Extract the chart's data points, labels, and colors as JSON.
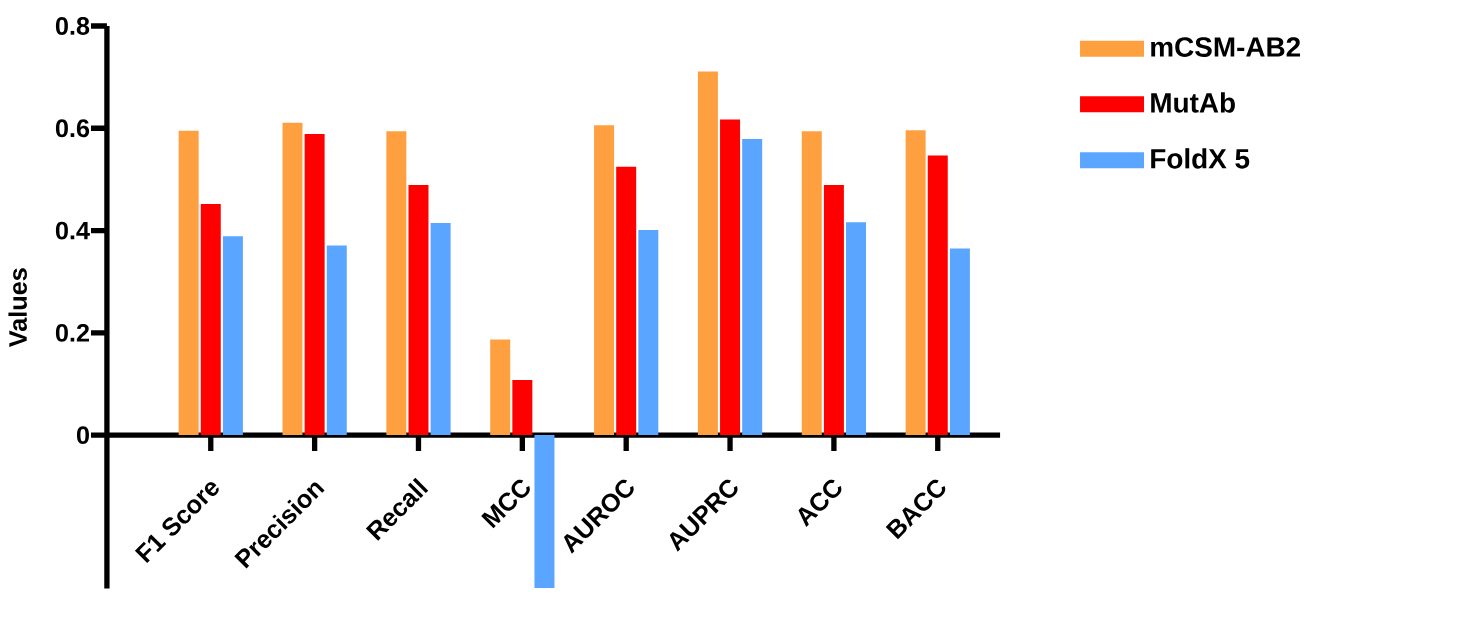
{
  "chart_data": {
    "type": "bar",
    "ylabel": "Values",
    "categories": [
      "F1 Score",
      "Precision",
      "Recall",
      "MCC",
      "AUROC",
      "AUPRC",
      "ACC",
      "BACC"
    ],
    "series": [
      {
        "name": "mCSM-AB2",
        "color": "#ffa040",
        "values": [
          0.595,
          0.611,
          0.594,
          0.187,
          0.606,
          0.711,
          0.594,
          0.596
        ]
      },
      {
        "name": "MutAb",
        "color": "#ff0000",
        "values": [
          0.452,
          0.589,
          0.489,
          0.108,
          0.525,
          0.617,
          0.489,
          0.547
        ]
      },
      {
        "name": "FoldX 5",
        "color": "#5aa5ff",
        "values": [
          0.389,
          0.371,
          0.415,
          -0.299,
          0.401,
          0.579,
          0.416,
          0.365
        ]
      }
    ],
    "ylim": [
      -0.3,
      0.8
    ],
    "yticks": [
      0,
      0.2,
      0.4,
      0.6,
      0.8
    ],
    "grid": false,
    "legend": "top right"
  }
}
